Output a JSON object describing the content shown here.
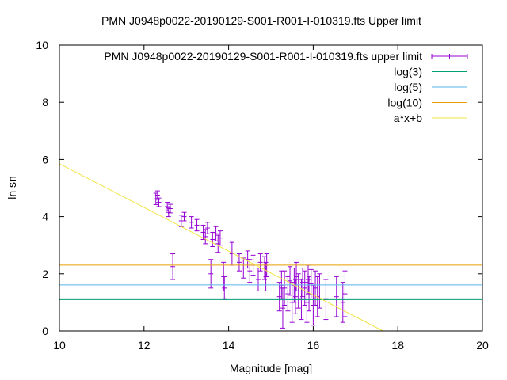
{
  "chart_data": {
    "type": "scatter",
    "title": "PMN J0948p0022-20190129-S001-R001-I-010319.fts Upper limit",
    "xlabel": "Magnitude [mag]",
    "ylabel": "ln sn",
    "xlim": [
      10,
      20
    ],
    "ylim": [
      0,
      10
    ],
    "xticks": [
      10,
      12,
      14,
      16,
      18,
      20
    ],
    "yticks": [
      0,
      2,
      4,
      6,
      8,
      10
    ],
    "legend_position": "top-right",
    "series": [
      {
        "name": "PMN J0948p0022-20190129-S001-R001-I-010319.fts upper limit",
        "kind": "errorbar",
        "color": "#9400d3",
        "points": [
          [
            12.28,
            4.62,
            0.2
          ],
          [
            12.32,
            4.75,
            0.15
          ],
          [
            12.35,
            4.5,
            0.15
          ],
          [
            12.55,
            4.35,
            0.15
          ],
          [
            12.58,
            4.15,
            0.15
          ],
          [
            12.62,
            4.28,
            0.15
          ],
          [
            12.68,
            2.25,
            0.45
          ],
          [
            12.88,
            3.85,
            0.2
          ],
          [
            12.95,
            4.0,
            0.15
          ],
          [
            13.12,
            3.8,
            0.2
          ],
          [
            13.25,
            3.7,
            0.2
          ],
          [
            13.4,
            3.45,
            0.25
          ],
          [
            13.45,
            3.3,
            0.25
          ],
          [
            13.5,
            3.6,
            0.2
          ],
          [
            13.58,
            2.0,
            0.5
          ],
          [
            13.62,
            3.2,
            0.25
          ],
          [
            13.7,
            3.4,
            0.25
          ],
          [
            13.75,
            3.05,
            0.3
          ],
          [
            13.8,
            3.25,
            0.25
          ],
          [
            13.88,
            1.9,
            0.5
          ],
          [
            13.9,
            1.5,
            0.4
          ],
          [
            14.08,
            2.7,
            0.4
          ],
          [
            14.25,
            2.4,
            0.3
          ],
          [
            14.35,
            2.2,
            0.35
          ],
          [
            14.45,
            2.5,
            0.3
          ],
          [
            14.5,
            2.1,
            0.4
          ],
          [
            14.58,
            2.3,
            0.35
          ],
          [
            14.7,
            1.8,
            0.4
          ],
          [
            14.75,
            2.4,
            0.3
          ],
          [
            14.85,
            2.2,
            0.4
          ],
          [
            14.88,
            1.9,
            0.5
          ],
          [
            14.9,
            2.3,
            0.4
          ],
          [
            15.2,
            1.2,
            0.5
          ],
          [
            15.25,
            1.6,
            0.5
          ],
          [
            15.28,
            0.8,
            0.7
          ],
          [
            15.32,
            1.5,
            0.6
          ],
          [
            15.4,
            1.3,
            0.6
          ],
          [
            15.45,
            1.75,
            0.5
          ],
          [
            15.5,
            1.0,
            0.7
          ],
          [
            15.55,
            1.6,
            0.6
          ],
          [
            15.58,
            1.2,
            0.6
          ],
          [
            15.6,
            1.9,
            0.5
          ],
          [
            15.65,
            1.4,
            0.6
          ],
          [
            15.72,
            1.1,
            0.7
          ],
          [
            15.75,
            1.7,
            0.5
          ],
          [
            15.8,
            1.5,
            0.6
          ],
          [
            15.85,
            1.0,
            0.7
          ],
          [
            15.88,
            1.8,
            0.5
          ],
          [
            15.9,
            1.3,
            0.6
          ],
          [
            15.95,
            1.65,
            0.5
          ],
          [
            16.0,
            0.9,
            0.7
          ],
          [
            16.05,
            1.5,
            0.6
          ],
          [
            16.1,
            1.2,
            0.7
          ],
          [
            16.15,
            1.4,
            0.6
          ],
          [
            16.3,
            1.1,
            0.7
          ],
          [
            16.55,
            1.2,
            0.7
          ],
          [
            16.7,
            1.0,
            0.7
          ],
          [
            16.75,
            1.3,
            0.8
          ]
        ]
      },
      {
        "name": "log(3)",
        "kind": "hline",
        "color": "#009e73",
        "y": 1.0986
      },
      {
        "name": "log(5)",
        "kind": "hline",
        "color": "#56b4e9",
        "y": 1.6094
      },
      {
        "name": "log(10)",
        "kind": "hline",
        "color": "#e69f00",
        "y": 2.3026
      },
      {
        "name": "a*x+b",
        "kind": "line",
        "color": "#f0e442",
        "x": [
          10,
          17.65
        ],
        "y": [
          5.85,
          0
        ]
      }
    ]
  }
}
